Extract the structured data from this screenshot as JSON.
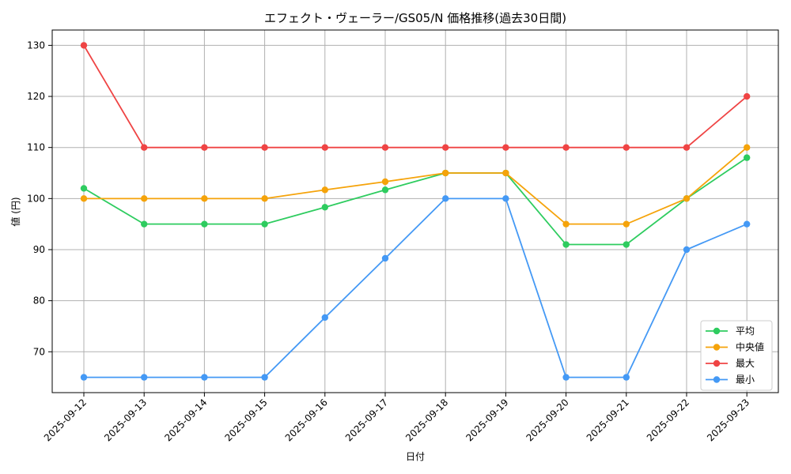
{
  "chart_data": {
    "type": "line",
    "title": "エフェクト・ヴェーラー/GS05/N 価格推移(過去30日間)",
    "xlabel": "日付",
    "ylabel": "値 (円)",
    "categories": [
      "2025-09-12",
      "2025-09-13",
      "2025-09-14",
      "2025-09-15",
      "2025-09-16",
      "2025-09-17",
      "2025-09-18",
      "2025-09-19",
      "2025-09-20",
      "2025-09-21",
      "2025-09-22",
      "2025-09-23"
    ],
    "ylim": [
      62,
      133
    ],
    "yticks": [
      70,
      80,
      90,
      100,
      110,
      120,
      130
    ],
    "grid": true,
    "legend_position": "bottom-right",
    "series": [
      {
        "name": "平均",
        "color": "#2ecc5f",
        "values": [
          102,
          95,
          95,
          95,
          98.3,
          101.7,
          105,
          105,
          91,
          91,
          100,
          108
        ]
      },
      {
        "name": "中央値",
        "color": "#f5a30a",
        "values": [
          100,
          100,
          100,
          100,
          101.7,
          103.3,
          105,
          105,
          95,
          95,
          100,
          110
        ]
      },
      {
        "name": "最大",
        "color": "#ef4444",
        "values": [
          130,
          110,
          110,
          110,
          110,
          110,
          110,
          110,
          110,
          110,
          110,
          120
        ]
      },
      {
        "name": "最小",
        "color": "#4499f5",
        "values": [
          65,
          65,
          65,
          65,
          76.7,
          88.3,
          100,
          100,
          65,
          65,
          90,
          95
        ]
      }
    ]
  }
}
